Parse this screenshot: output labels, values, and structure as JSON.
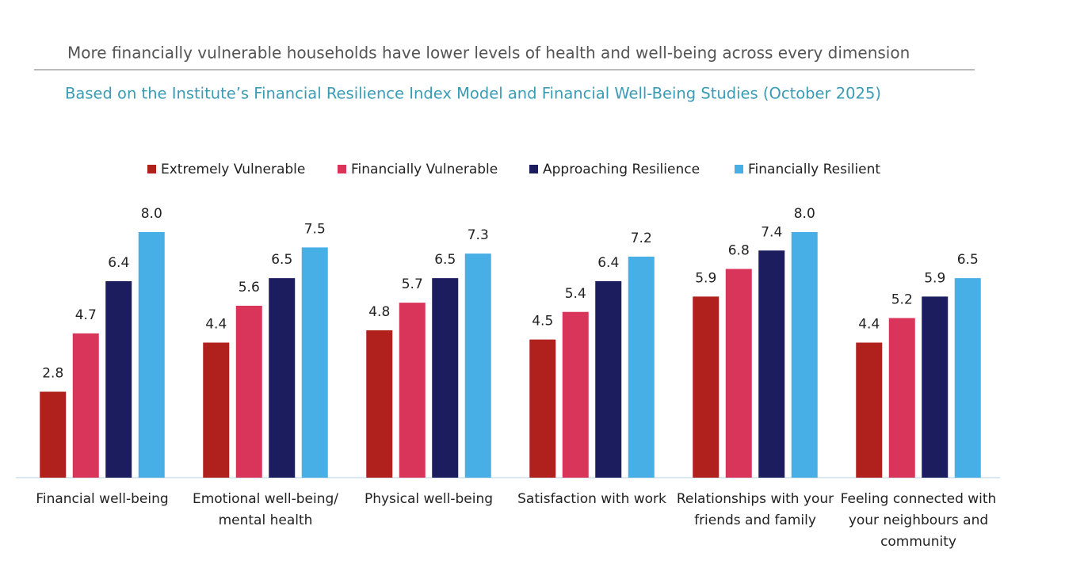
{
  "chart_data": {
    "type": "bar",
    "title": "More financially vulnerable households have lower levels of health and well-being across every dimension",
    "subtitle": "Based on the Institute’s Financial Resilience Index Model and Financial Well-Being Studies (October 2025)",
    "categories": [
      [
        "Financial well-being"
      ],
      [
        "Emotional well-being/",
        "mental health"
      ],
      [
        "Physical well-being"
      ],
      [
        "Satisfaction with work"
      ],
      [
        "Relationships with your",
        "friends and family"
      ],
      [
        "Feeling connected with",
        "your neighbours and",
        "community"
      ]
    ],
    "series": [
      {
        "name": "Extremely Vulnerable",
        "color": "#b0201c",
        "values": [
          2.8,
          4.4,
          4.8,
          4.5,
          5.9,
          4.4
        ],
        "value_labels": [
          "2.8",
          "4.4",
          "4.8",
          "4.5",
          "5.9",
          "4.4"
        ]
      },
      {
        "name": "Financially Vulnerable",
        "color": "#d9345a",
        "values": [
          4.7,
          5.6,
          5.7,
          5.4,
          6.8,
          5.2
        ],
        "value_labels": [
          "4.7",
          "5.6",
          "5.7",
          "5.4",
          "6.8",
          "5.2"
        ]
      },
      {
        "name": "Approaching Resilience",
        "color": "#1c1d5e",
        "values": [
          6.4,
          6.5,
          6.5,
          6.4,
          7.4,
          5.9
        ],
        "value_labels": [
          "6.4",
          "6.5",
          "6.5",
          "6.4",
          "7.4",
          "5.9"
        ]
      },
      {
        "name": "Financially Resilient",
        "color": "#48aee6",
        "values": [
          8.0,
          7.5,
          7.3,
          7.2,
          8.0,
          6.5
        ],
        "value_labels": [
          "8.0",
          "7.5",
          "7.3",
          "7.2",
          "8.0",
          "6.5"
        ]
      }
    ]
  }
}
